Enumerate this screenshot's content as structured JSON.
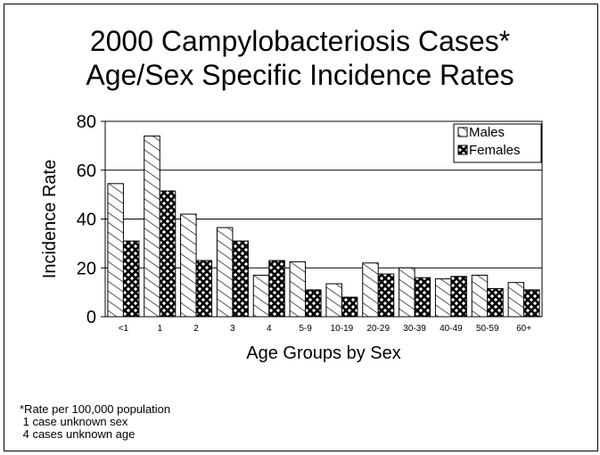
{
  "chart_data": {
    "type": "bar",
    "title_lines": [
      "2000 Campylobacteriosis Cases*",
      "Age/Sex Specific Incidence Rates"
    ],
    "xlabel": "Age Groups by Sex",
    "ylabel": "Incidence Rate",
    "ylim": [
      0,
      80
    ],
    "yticks": [
      "0",
      "20",
      "40",
      "60",
      "80"
    ],
    "grid": true,
    "legend_position": "top-right",
    "categories": [
      "<1",
      "1",
      "2",
      "3",
      "4",
      "5-9",
      "10-19",
      "20-29",
      "30-39",
      "40-49",
      "50-59",
      "60+"
    ],
    "series": [
      {
        "name": "Males",
        "pattern": "diagonal-hatch",
        "values": [
          54.5,
          74,
          42,
          36.5,
          17,
          22.5,
          13.5,
          22,
          20,
          15.5,
          17,
          14
        ]
      },
      {
        "name": "Females",
        "pattern": "cross-hatch",
        "values": [
          31,
          51.5,
          23,
          31,
          23,
          11,
          8,
          17.5,
          16,
          16.5,
          11.5,
          11
        ]
      }
    ]
  },
  "footnotes": [
    "*Rate per 100,000 population",
    " 1 case unknown sex",
    " 4 cases unknown age"
  ]
}
